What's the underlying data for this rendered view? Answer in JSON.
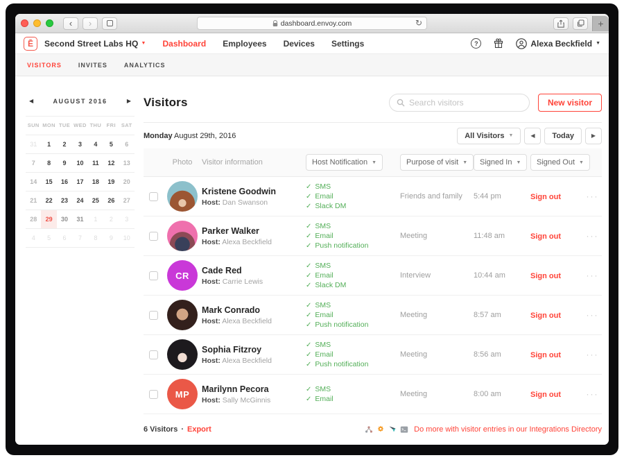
{
  "browser": {
    "url": "dashboard.envoy.com"
  },
  "appbar": {
    "logo_glyph": "Ē",
    "company": "Second Street Labs HQ",
    "nav": [
      {
        "label": "Dashboard",
        "active": true
      },
      {
        "label": "Employees",
        "active": false
      },
      {
        "label": "Devices",
        "active": false
      },
      {
        "label": "Settings",
        "active": false
      }
    ],
    "user": "Alexa Beckfield"
  },
  "subnav": [
    {
      "label": "VISITORS",
      "active": true
    },
    {
      "label": "INVITES",
      "active": false
    },
    {
      "label": "ANALYTICS",
      "active": false
    }
  ],
  "calendar": {
    "month": "AUGUST 2016",
    "day_headers": [
      "SUN",
      "MON",
      "TUE",
      "WED",
      "THU",
      "FRI",
      "SAT"
    ],
    "weeks": [
      [
        {
          "d": "31",
          "s": "out"
        },
        {
          "d": "1",
          "s": "weekday"
        },
        {
          "d": "2",
          "s": "weekday"
        },
        {
          "d": "3",
          "s": "weekday"
        },
        {
          "d": "4",
          "s": "weekday"
        },
        {
          "d": "5",
          "s": "weekday"
        },
        {
          "d": "6",
          "s": "weekend"
        }
      ],
      [
        {
          "d": "7",
          "s": "weekend"
        },
        {
          "d": "8",
          "s": "weekday"
        },
        {
          "d": "9",
          "s": "weekday"
        },
        {
          "d": "10",
          "s": "weekday"
        },
        {
          "d": "11",
          "s": "weekday"
        },
        {
          "d": "12",
          "s": "weekday"
        },
        {
          "d": "13",
          "s": "weekend"
        }
      ],
      [
        {
          "d": "14",
          "s": "weekend"
        },
        {
          "d": "15",
          "s": "weekday"
        },
        {
          "d": "16",
          "s": "weekday"
        },
        {
          "d": "17",
          "s": "weekday"
        },
        {
          "d": "18",
          "s": "weekday"
        },
        {
          "d": "19",
          "s": "weekday"
        },
        {
          "d": "20",
          "s": "weekend"
        }
      ],
      [
        {
          "d": "21",
          "s": "weekend"
        },
        {
          "d": "22",
          "s": "weekday"
        },
        {
          "d": "23",
          "s": "weekday"
        },
        {
          "d": "24",
          "s": "weekday"
        },
        {
          "d": "25",
          "s": "weekday"
        },
        {
          "d": "26",
          "s": "weekday"
        },
        {
          "d": "27",
          "s": "weekend"
        }
      ],
      [
        {
          "d": "28",
          "s": "weekend"
        },
        {
          "d": "29",
          "s": "selected"
        },
        {
          "d": "30",
          "s": "future"
        },
        {
          "d": "31",
          "s": "future"
        },
        {
          "d": "1",
          "s": "out"
        },
        {
          "d": "2",
          "s": "out"
        },
        {
          "d": "3",
          "s": "out"
        }
      ],
      [
        {
          "d": "4",
          "s": "out"
        },
        {
          "d": "5",
          "s": "out"
        },
        {
          "d": "6",
          "s": "out"
        },
        {
          "d": "7",
          "s": "out"
        },
        {
          "d": "8",
          "s": "out"
        },
        {
          "d": "9",
          "s": "out"
        },
        {
          "d": "10",
          "s": "out"
        }
      ]
    ]
  },
  "main": {
    "title": "Visitors",
    "search_placeholder": "Search visitors",
    "new_visitor_label": "New visitor",
    "date_bold": "Monday",
    "date_rest": "August 29th, 2016",
    "filter_label": "All Visitors",
    "today_label": "Today",
    "columns": {
      "photo": "Photo",
      "info": "Visitor information",
      "notification": "Host Notification",
      "purpose": "Purpose of visit",
      "signed_in": "Signed In",
      "signed_out": "Signed Out"
    },
    "host_prefix": "Host:",
    "rows": [
      {
        "name": "Kristene Goodwin",
        "host": "Dan Swanson",
        "notifications": [
          "SMS",
          "Email",
          "Slack DM"
        ],
        "purpose": "Friends and family",
        "signed_in": "5:44 pm",
        "sign_out_label": "Sign out",
        "avatar": {
          "kind": "photo",
          "key": "kristene"
        }
      },
      {
        "name": "Parker Walker",
        "host": "Alexa Beckfield",
        "notifications": [
          "SMS",
          "Email",
          "Push notification"
        ],
        "purpose": "Meeting",
        "signed_in": "11:48 am",
        "sign_out_label": "Sign out",
        "avatar": {
          "kind": "photo",
          "key": "parker"
        }
      },
      {
        "name": "Cade Red",
        "host": "Carrie Lewis",
        "notifications": [
          "SMS",
          "Email",
          "Slack DM"
        ],
        "purpose": "Interview",
        "signed_in": "10:44 am",
        "sign_out_label": "Sign out",
        "avatar": {
          "kind": "initials",
          "initials": "CR",
          "color": "#c938d8"
        }
      },
      {
        "name": "Mark Conrado",
        "host": "Alexa Beckfield",
        "notifications": [
          "SMS",
          "Email",
          "Push notification"
        ],
        "purpose": "Meeting",
        "signed_in": "8:57 am",
        "sign_out_label": "Sign out",
        "avatar": {
          "kind": "photo",
          "key": "mark"
        }
      },
      {
        "name": "Sophia Fitzroy",
        "host": "Alexa Beckfield",
        "notifications": [
          "SMS",
          "Email",
          "Push notification"
        ],
        "purpose": "Meeting",
        "signed_in": "8:56 am",
        "sign_out_label": "Sign out",
        "avatar": {
          "kind": "photo",
          "key": "sophia"
        }
      },
      {
        "name": "Marilynn Pecora",
        "host": "Sally McGinnis",
        "notifications": [
          "SMS",
          "Email"
        ],
        "purpose": "Meeting",
        "signed_in": "8:00 am",
        "sign_out_label": "Sign out",
        "avatar": {
          "kind": "initials",
          "initials": "MP",
          "color": "#ea5847"
        }
      }
    ],
    "footer": {
      "count": "6 Visitors",
      "separator": "·",
      "export_label": "Export",
      "promo": "Do more with visitor entries in our Integrations Directory"
    }
  },
  "colors": {
    "accent": "#ff4338",
    "notification_green": "#52ae57",
    "selected_day": "#ef4f46",
    "selected_day_bg": "#fcebe9"
  }
}
